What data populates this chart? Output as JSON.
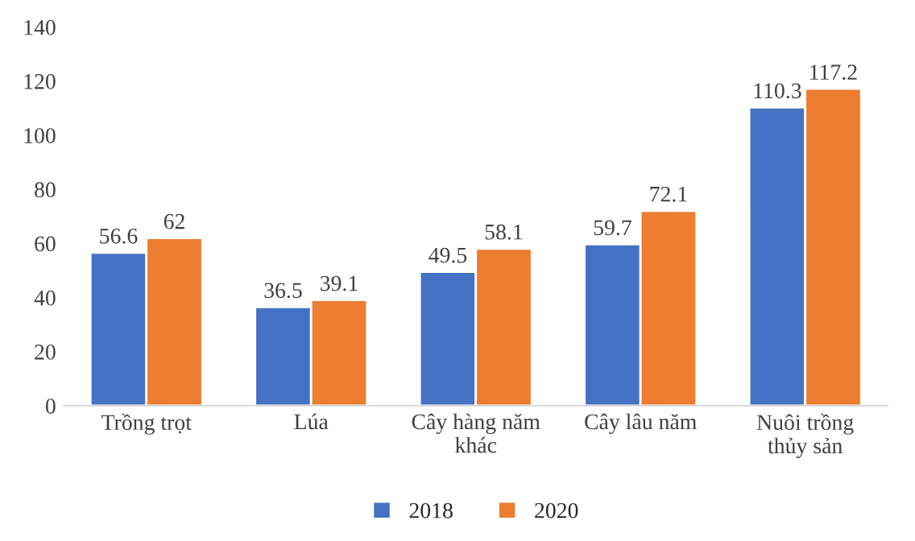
{
  "chart_data": {
    "type": "bar",
    "categories": [
      "Trồng trọt",
      "Lúa",
      "Cây hàng năm\nkhác",
      "Cây lâu năm",
      "Nuôi trồng\nthủy sản"
    ],
    "series": [
      {
        "name": "2018",
        "color": "#4472c4",
        "values": [
          56.6,
          36.5,
          49.5,
          59.7,
          110.3
        ]
      },
      {
        "name": "2020",
        "color": "#ed7d31",
        "values": [
          62,
          39.1,
          58.1,
          72.1,
          117.2
        ]
      }
    ],
    "ylim": [
      0,
      140
    ],
    "yticks": [
      0,
      20,
      40,
      60,
      80,
      100,
      120,
      140
    ],
    "data_labels": true,
    "grid": false,
    "legend": "bottom"
  }
}
